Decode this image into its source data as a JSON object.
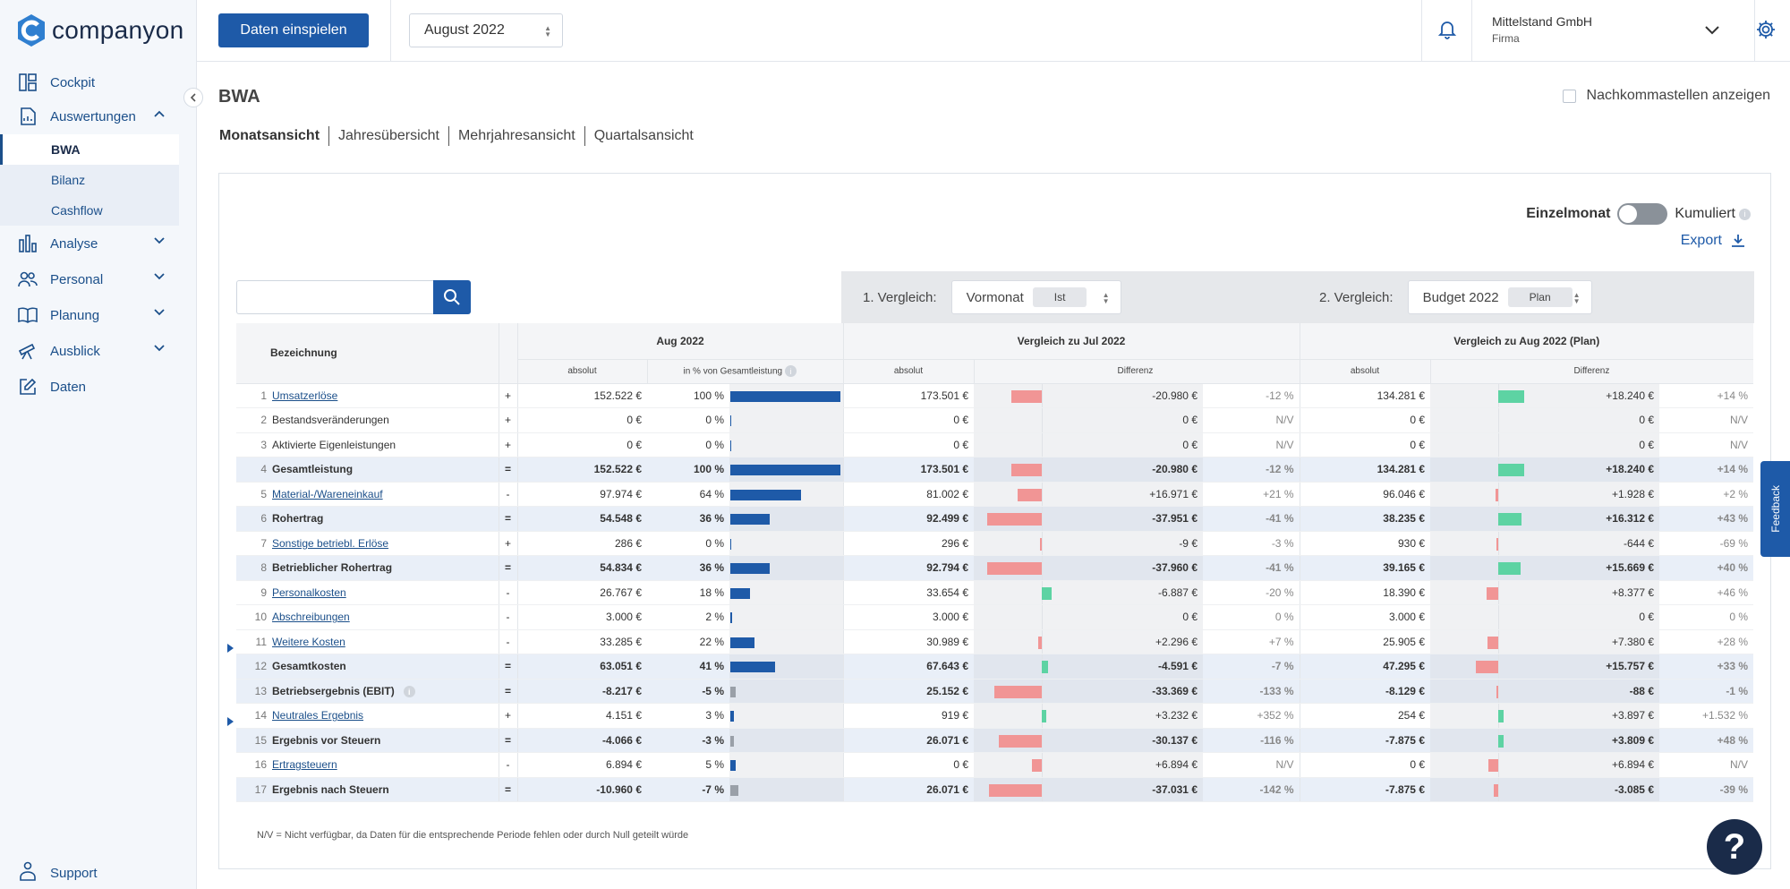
{
  "app": {
    "logo_text": "companyon"
  },
  "sidebar": {
    "items": [
      {
        "label": "Cockpit",
        "icon": "dashboard-icon"
      },
      {
        "label": "Auswertungen",
        "icon": "report-icon",
        "expanded": true,
        "subitems": [
          "BWA",
          "Bilanz",
          "Cashflow"
        ]
      },
      {
        "label": "Analyse",
        "icon": "bar-chart-icon"
      },
      {
        "label": "Personal",
        "icon": "people-icon"
      },
      {
        "label": "Planung",
        "icon": "book-icon"
      },
      {
        "label": "Ausblick",
        "icon": "telescope-icon"
      },
      {
        "label": "Daten",
        "icon": "edit-icon"
      }
    ],
    "support_label": "Support"
  },
  "topbar": {
    "import_button": "Daten einspielen",
    "month": "August 2022",
    "company_name": "Mittelstand GmbH",
    "company_role": "Firma"
  },
  "page": {
    "title": "BWA",
    "decimals_label": "Nachkommastellen anzeigen",
    "tabs": [
      "Monatsansicht",
      "Jahresübersicht",
      "Mehrjahresansicht",
      "Quartalsansicht"
    ],
    "toggle_left": "Einzelmonat",
    "toggle_right": "Kumuliert",
    "export_label": "Export",
    "compare1_label": "1. Vergleich:",
    "compare1_value": "Vormonat",
    "compare1_pill": "Ist",
    "compare2_label": "2. Vergleich:",
    "compare2_value": "Budget 2022",
    "compare2_pill": "Plan",
    "footnote": "N/V = Nicht verfügbar, da Daten für die entsprechende Periode fehlen oder durch Null geteilt würde",
    "feedback_label": "Feedback",
    "help_label": "?"
  },
  "table": {
    "headers": {
      "bezeichnung": "Bezeichnung",
      "aug": "Aug 2022",
      "vgl1": "Vergleich zu Jul 2022",
      "vgl2": "Vergleich zu Aug 2022 (Plan)",
      "absolut": "absolut",
      "pct_gesamt": "in % von Gesamtleistung",
      "differenz": "Differenz"
    },
    "rows": [
      {
        "nr": "1",
        "label": "Umsatzerlöse",
        "link": true,
        "bold": false,
        "op": "+",
        "abs": "152.522 €",
        "pct": "100 %",
        "pct_v": 100,
        "pct_neg": false,
        "v1": "173.501 €",
        "d1": "-20.980 €",
        "d1v": -20980,
        "p1": "-12 %",
        "v2": "134.281 €",
        "d2": "+18.240 €",
        "d2v": 18240,
        "p2": "+14 %"
      },
      {
        "nr": "2",
        "label": "Bestandsveränderungen",
        "link": false,
        "bold": false,
        "op": "+",
        "abs": "0 €",
        "pct": "0 %",
        "pct_v": 0,
        "pct_neg": false,
        "v1": "0 €",
        "d1": "0 €",
        "d1v": 0,
        "p1": "N/V",
        "v2": "0 €",
        "d2": "0 €",
        "d2v": 0,
        "p2": "N/V"
      },
      {
        "nr": "3",
        "label": "Aktivierte Eigenleistungen",
        "link": false,
        "bold": false,
        "op": "+",
        "abs": "0 €",
        "pct": "0 %",
        "pct_v": 0,
        "pct_neg": false,
        "v1": "0 €",
        "d1": "0 €",
        "d1v": 0,
        "p1": "N/V",
        "v2": "0 €",
        "d2": "0 €",
        "d2v": 0,
        "p2": "N/V"
      },
      {
        "nr": "4",
        "label": "Gesamtleistung",
        "link": false,
        "bold": true,
        "op": "=",
        "abs": "152.522 €",
        "pct": "100 %",
        "pct_v": 100,
        "pct_neg": false,
        "v1": "173.501 €",
        "d1": "-20.980 €",
        "d1v": -20980,
        "p1": "-12 %",
        "v2": "134.281 €",
        "d2": "+18.240 €",
        "d2v": 18240,
        "p2": "+14 %"
      },
      {
        "nr": "5",
        "label": "Material-/Wareneinkauf",
        "link": true,
        "bold": false,
        "op": "-",
        "abs": "97.974 €",
        "pct": "64 %",
        "pct_v": 64,
        "pct_neg": false,
        "v1": "81.002 €",
        "d1": "+16.971 €",
        "d1v": -16971,
        "p1": "+21 %",
        "v2": "96.046 €",
        "d2": "+1.928 €",
        "d2v": -1928,
        "p2": "+2 %"
      },
      {
        "nr": "6",
        "label": "Rohertrag",
        "link": false,
        "bold": true,
        "op": "=",
        "abs": "54.548 €",
        "pct": "36 %",
        "pct_v": 36,
        "pct_neg": false,
        "v1": "92.499 €",
        "d1": "-37.951 €",
        "d1v": -37951,
        "p1": "-41 %",
        "v2": "38.235 €",
        "d2": "+16.312 €",
        "d2v": 16312,
        "p2": "+43 %"
      },
      {
        "nr": "7",
        "label": "Sonstige betriebl. Erlöse",
        "link": true,
        "bold": false,
        "op": "+",
        "abs": "286 €",
        "pct": "0 %",
        "pct_v": 0.5,
        "pct_neg": false,
        "v1": "296 €",
        "d1": "-9 €",
        "d1v": -9,
        "p1": "-3 %",
        "v2": "930 €",
        "d2": "-644 €",
        "d2v": -644,
        "p2": "-69 %"
      },
      {
        "nr": "8",
        "label": "Betrieblicher Rohertrag",
        "link": false,
        "bold": true,
        "op": "=",
        "abs": "54.834 €",
        "pct": "36 %",
        "pct_v": 36,
        "pct_neg": false,
        "v1": "92.794 €",
        "d1": "-37.960 €",
        "d1v": -37960,
        "p1": "-41 %",
        "v2": "39.165 €",
        "d2": "+15.669 €",
        "d2v": 15669,
        "p2": "+40 %"
      },
      {
        "nr": "9",
        "label": "Personalkosten",
        "link": true,
        "bold": false,
        "op": "-",
        "abs": "26.767 €",
        "pct": "18 %",
        "pct_v": 18,
        "pct_neg": false,
        "v1": "33.654 €",
        "d1": "-6.887 €",
        "d1v": 6887,
        "p1": "-20 %",
        "v2": "18.390 €",
        "d2": "+8.377 €",
        "d2v": -8377,
        "p2": "+46 %"
      },
      {
        "nr": "10",
        "label": "Abschreibungen",
        "link": true,
        "bold": false,
        "op": "-",
        "abs": "3.000 €",
        "pct": "2 %",
        "pct_v": 2,
        "pct_neg": false,
        "v1": "3.000 €",
        "d1": "0 €",
        "d1v": 0,
        "p1": "0 %",
        "v2": "3.000 €",
        "d2": "0 €",
        "d2v": 0,
        "p2": "0 %"
      },
      {
        "nr": "11",
        "label": "Weitere Kosten",
        "link": true,
        "bold": false,
        "op": "-",
        "abs": "33.285 €",
        "pct": "22 %",
        "pct_v": 22,
        "pct_neg": false,
        "v1": "30.989 €",
        "d1": "+2.296 €",
        "d1v": -2296,
        "p1": "+7 %",
        "v2": "25.905 €",
        "d2": "+7.380 €",
        "d2v": -7380,
        "p2": "+28 %",
        "expand": true
      },
      {
        "nr": "12",
        "label": "Gesamtkosten",
        "link": false,
        "bold": true,
        "op": "=",
        "abs": "63.051 €",
        "pct": "41 %",
        "pct_v": 41,
        "pct_neg": false,
        "v1": "67.643 €",
        "d1": "-4.591 €",
        "d1v": 4591,
        "p1": "-7 %",
        "v2": "47.295 €",
        "d2": "+15.757 €",
        "d2v": -15757,
        "p2": "+33 %"
      },
      {
        "nr": "13",
        "label": "Betriebsergebnis (EBIT)",
        "link": false,
        "bold": true,
        "op": "=",
        "abs": "-8.217 €",
        "pct": "-5 %",
        "pct_v": 5,
        "pct_neg": true,
        "v1": "25.152 €",
        "d1": "-33.369 €",
        "d1v": -33369,
        "p1": "-133 %",
        "v2": "-8.129 €",
        "d2": "-88 €",
        "d2v": -88,
        "p2": "-1 %",
        "info": true
      },
      {
        "nr": "14",
        "label": "Neutrales Ergebnis",
        "link": true,
        "bold": false,
        "op": "+",
        "abs": "4.151 €",
        "pct": "3 %",
        "pct_v": 3,
        "pct_neg": false,
        "v1": "919 €",
        "d1": "+3.232 €",
        "d1v": 3232,
        "p1": "+352 %",
        "v2": "254 €",
        "d2": "+3.897 €",
        "d2v": 3897,
        "p2": "+1.532 %",
        "expand": true
      },
      {
        "nr": "15",
        "label": "Ergebnis vor Steuern",
        "link": false,
        "bold": true,
        "op": "=",
        "abs": "-4.066 €",
        "pct": "-3 %",
        "pct_v": 3,
        "pct_neg": true,
        "v1": "26.071 €",
        "d1": "-30.137 €",
        "d1v": -30137,
        "p1": "-116 %",
        "v2": "-7.875 €",
        "d2": "+3.809 €",
        "d2v": 3809,
        "p2": "+48 %"
      },
      {
        "nr": "16",
        "label": "Ertragsteuern",
        "link": true,
        "bold": false,
        "op": "-",
        "abs": "6.894 €",
        "pct": "5 %",
        "pct_v": 5,
        "pct_neg": false,
        "v1": "0 €",
        "d1": "+6.894 €",
        "d1v": -6894,
        "p1": "N/V",
        "v2": "0 €",
        "d2": "+6.894 €",
        "d2v": -6894,
        "p2": "N/V"
      },
      {
        "nr": "17",
        "label": "Ergebnis nach Steuern",
        "link": false,
        "bold": true,
        "op": "=",
        "abs": "-10.960 €",
        "pct": "-7 %",
        "pct_v": 7,
        "pct_neg": true,
        "v1": "26.071 €",
        "d1": "-37.031 €",
        "d1v": -37031,
        "p1": "-142 %",
        "v2": "-7.875 €",
        "d2": "-3.085 €",
        "d2v": -3085,
        "p2": "-39 %"
      }
    ]
  },
  "colors": {
    "primary": "#1e5aa8",
    "positive": "#5dd3a3",
    "negative": "#f19595",
    "neutral_bar": "#9aa0a8"
  }
}
